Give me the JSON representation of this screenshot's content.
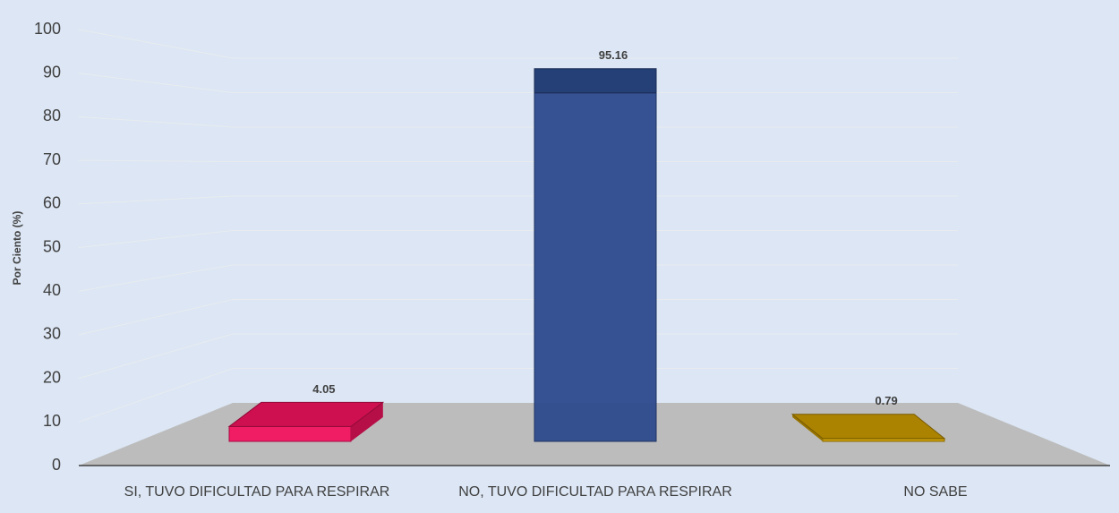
{
  "chart_data": {
    "type": "bar3d",
    "y_label": "Por Ciento (%)",
    "categories": [
      "SI, TUVO DIFICULTAD PARA RESPIRAR",
      "NO, TUVO DIFICULTAD PARA RESPIRAR",
      "NO SABE"
    ],
    "values": [
      4.05,
      95.16,
      0.79
    ],
    "colors": [
      "#f2135f",
      "#2c4a8c",
      "#c99a00"
    ],
    "ylim": [
      0,
      100
    ],
    "yticks": [
      0,
      10,
      20,
      30,
      40,
      50,
      60,
      70,
      80,
      90,
      100
    ],
    "grid": true
  }
}
